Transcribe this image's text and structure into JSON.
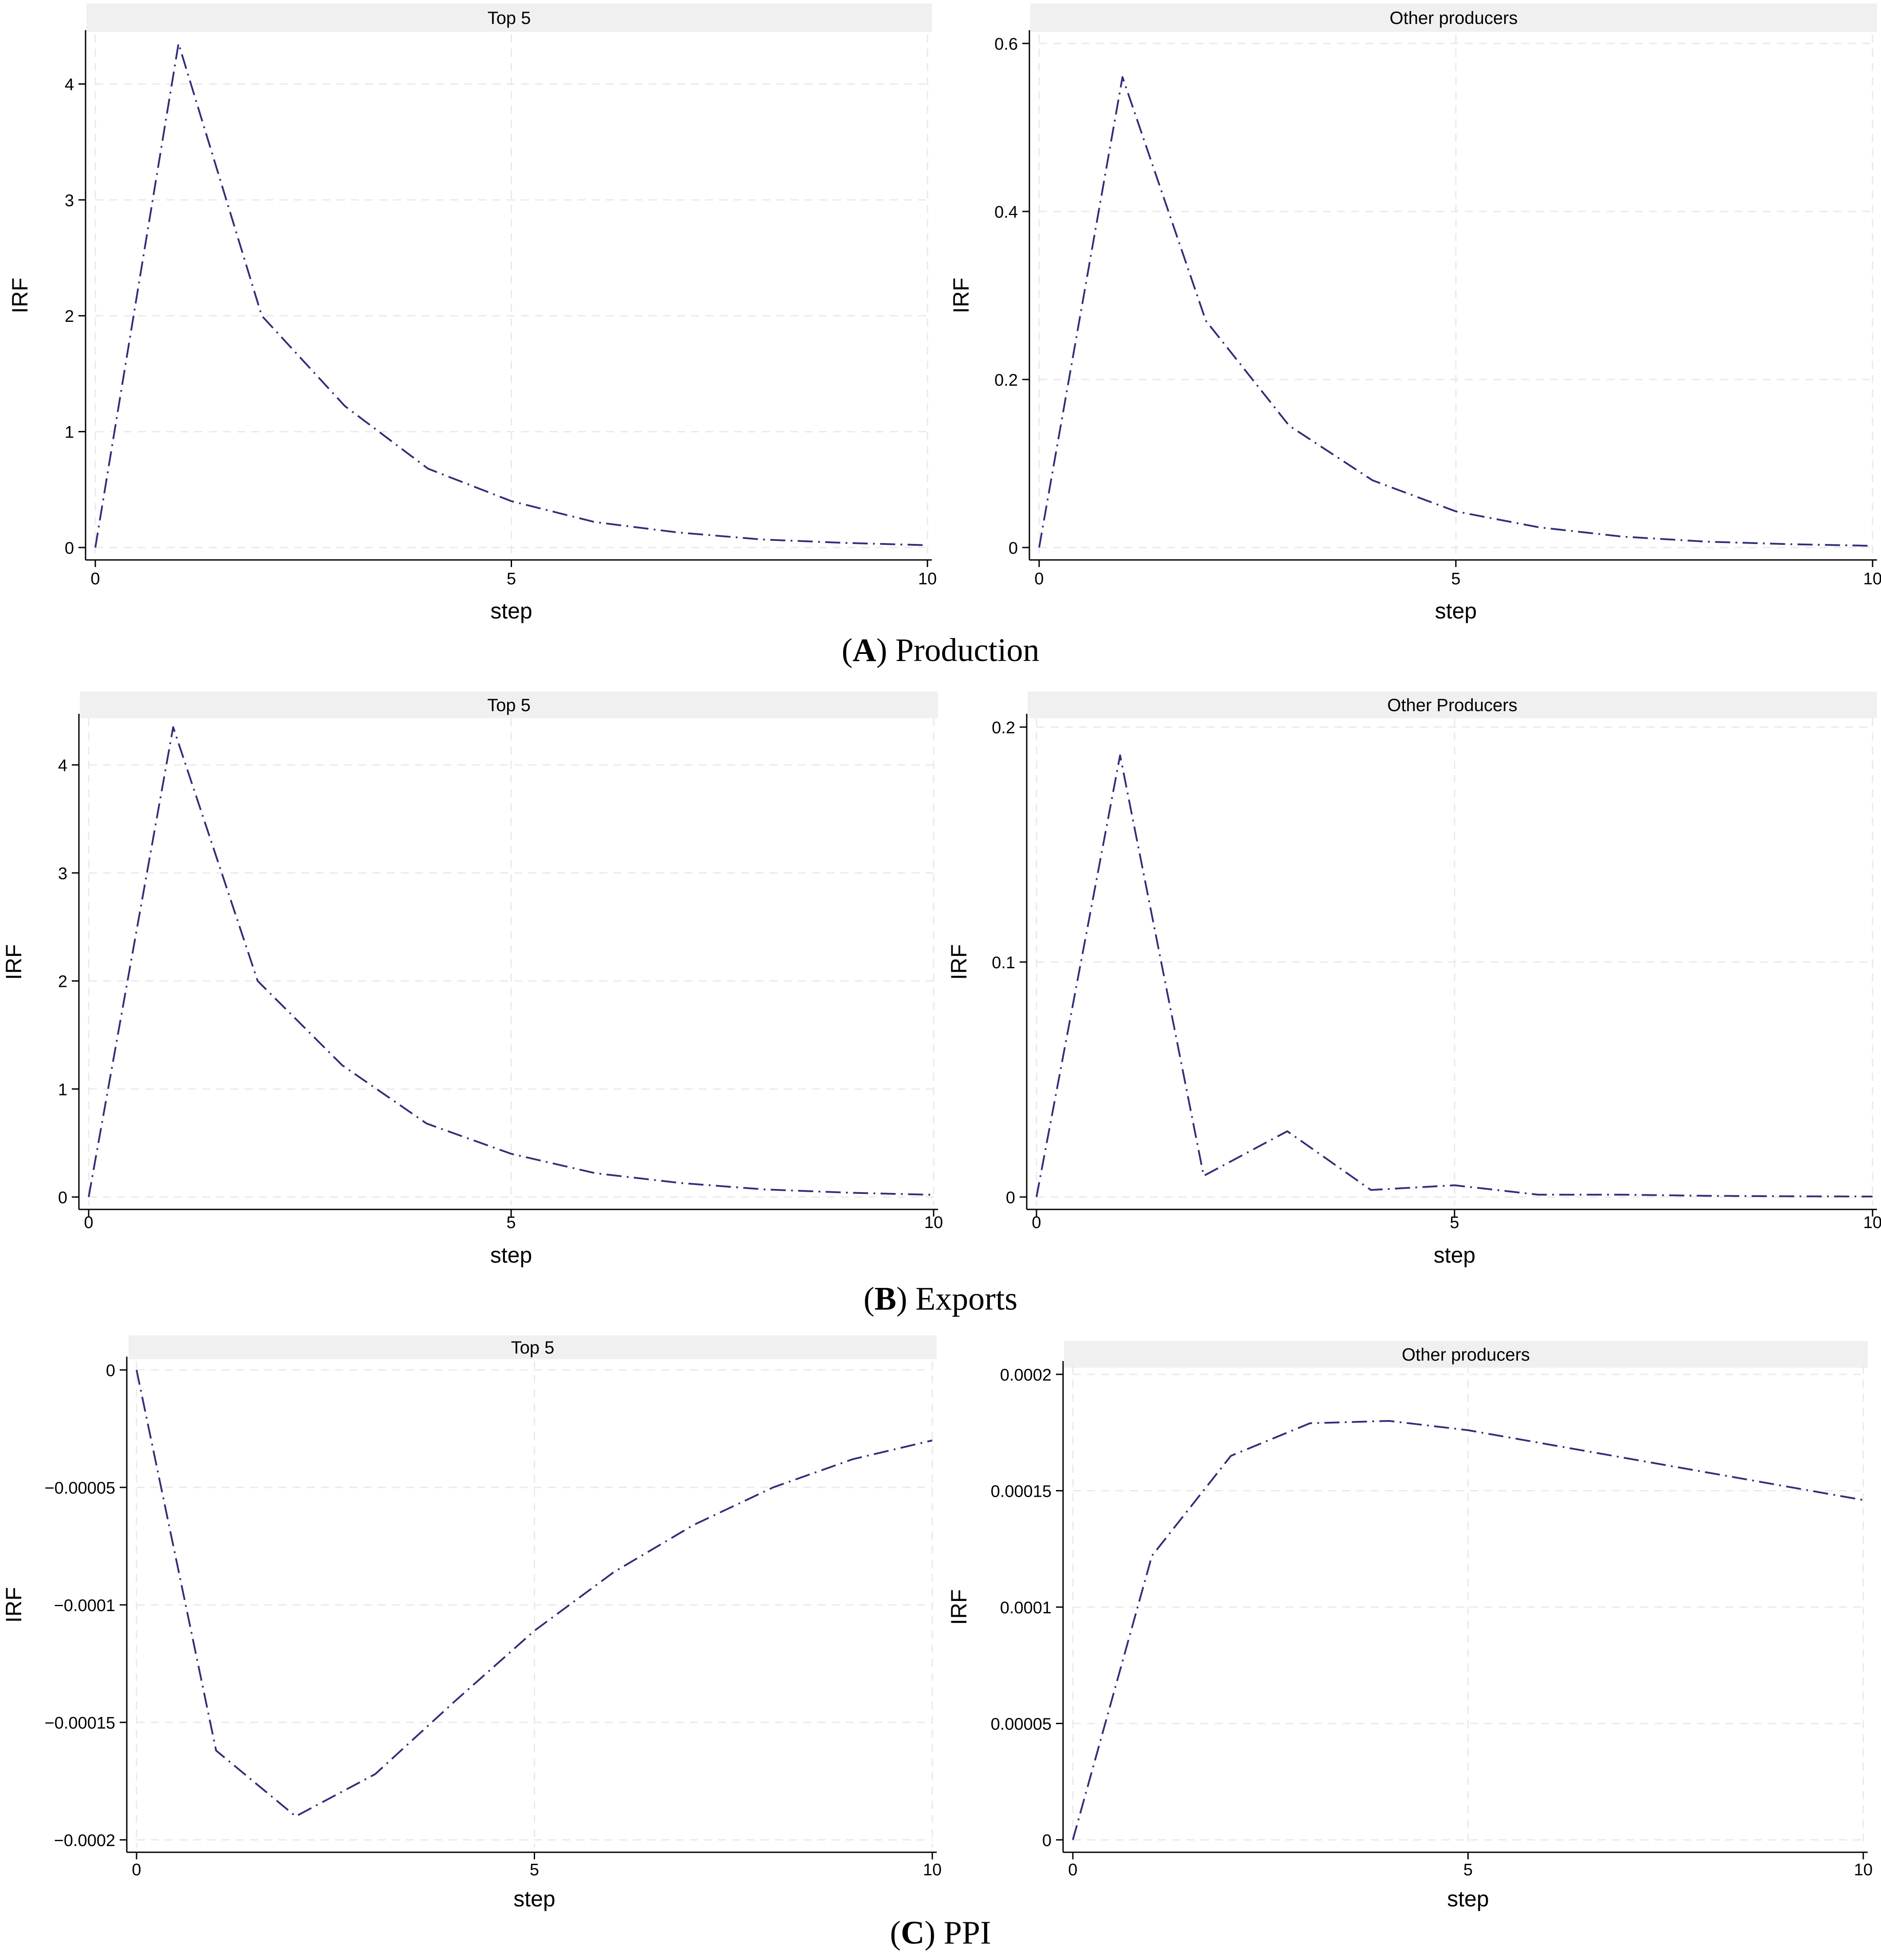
{
  "chart_data": [
    {
      "type": "line",
      "panel": "A",
      "title": "Top 5",
      "xlabel": "step",
      "ylabel": "IRF",
      "xlim": [
        0,
        10
      ],
      "ylim": [
        0,
        4.35
      ],
      "xticks": [
        {
          "v": 0,
          "label": "0"
        },
        {
          "v": 5,
          "label": "5"
        },
        {
          "v": 10,
          "label": "10"
        }
      ],
      "yticks": [
        {
          "v": 0,
          "label": "0"
        },
        {
          "v": 1,
          "label": "1"
        },
        {
          "v": 2,
          "label": "2"
        },
        {
          "v": 3,
          "label": "3"
        },
        {
          "v": 4,
          "label": "4"
        }
      ],
      "x": [
        0,
        1,
        2,
        3,
        4,
        5,
        6,
        7,
        8,
        9,
        10
      ],
      "values": [
        0,
        4.35,
        2.0,
        1.22,
        0.68,
        0.4,
        0.22,
        0.13,
        0.07,
        0.04,
        0.02
      ]
    },
    {
      "type": "line",
      "panel": "A",
      "title": "Other producers",
      "xlabel": "step",
      "ylabel": "IRF",
      "xlim": [
        0,
        10
      ],
      "ylim": [
        0,
        0.6
      ],
      "xticks": [
        {
          "v": 0,
          "label": "0"
        },
        {
          "v": 5,
          "label": "5"
        },
        {
          "v": 10,
          "label": "10"
        }
      ],
      "yticks": [
        {
          "v": 0,
          "label": "0"
        },
        {
          "v": 0.2,
          "label": "0.2"
        },
        {
          "v": 0.4,
          "label": "0.4"
        },
        {
          "v": 0.6,
          "label": "0.6"
        }
      ],
      "x": [
        0,
        1,
        2,
        3,
        4,
        5,
        6,
        7,
        8,
        9,
        10
      ],
      "values": [
        0,
        0.56,
        0.27,
        0.145,
        0.08,
        0.043,
        0.024,
        0.013,
        0.007,
        0.004,
        0.002
      ]
    },
    {
      "type": "line",
      "panel": "B",
      "title": "Top 5",
      "xlabel": "step",
      "ylabel": "IRF",
      "xlim": [
        0,
        10
      ],
      "ylim": [
        0,
        4.35
      ],
      "xticks": [
        {
          "v": 0,
          "label": "0"
        },
        {
          "v": 5,
          "label": "5"
        },
        {
          "v": 10,
          "label": "10"
        }
      ],
      "yticks": [
        {
          "v": 0,
          "label": "0"
        },
        {
          "v": 1,
          "label": "1"
        },
        {
          "v": 2,
          "label": "2"
        },
        {
          "v": 3,
          "label": "3"
        },
        {
          "v": 4,
          "label": "4"
        }
      ],
      "x": [
        0,
        1,
        2,
        3,
        4,
        5,
        6,
        7,
        8,
        9,
        10
      ],
      "values": [
        0,
        4.35,
        2.0,
        1.22,
        0.68,
        0.4,
        0.22,
        0.13,
        0.07,
        0.04,
        0.02
      ]
    },
    {
      "type": "line",
      "panel": "B",
      "title": "Other Producers",
      "xlabel": "step",
      "ylabel": "IRF",
      "xlim": [
        0,
        10
      ],
      "ylim": [
        0,
        0.2
      ],
      "xticks": [
        {
          "v": 0,
          "label": "0"
        },
        {
          "v": 5,
          "label": "5"
        },
        {
          "v": 10,
          "label": "10"
        }
      ],
      "yticks": [
        {
          "v": 0,
          "label": "0"
        },
        {
          "v": 0.1,
          "label": "0.1"
        },
        {
          "v": 0.2,
          "label": "0.2"
        }
      ],
      "x": [
        0,
        1,
        2,
        3,
        4,
        5,
        6,
        7,
        8,
        9,
        10
      ],
      "values": [
        0,
        0.188,
        0.009,
        0.028,
        0.003,
        0.005,
        0.001,
        0.001,
        0.0005,
        0.0003,
        0.0002
      ]
    },
    {
      "type": "line",
      "panel": "C",
      "title": "Top 5",
      "xlabel": "step",
      "ylabel": "IRF",
      "xlim": [
        0,
        10
      ],
      "ylim": [
        -0.0002,
        0
      ],
      "xticks": [
        {
          "v": 0,
          "label": "0"
        },
        {
          "v": 5,
          "label": "5"
        },
        {
          "v": 10,
          "label": "10"
        }
      ],
      "yticks": [
        {
          "v": 0,
          "label": "0"
        },
        {
          "v": -5e-05,
          "label": "−0.00005"
        },
        {
          "v": -0.0001,
          "label": "−0.0001"
        },
        {
          "v": -0.00015,
          "label": "−0.00015"
        },
        {
          "v": -0.0002,
          "label": "−0.0002"
        }
      ],
      "x": [
        0,
        1,
        2,
        3,
        4,
        5,
        6,
        7,
        8,
        9,
        10
      ],
      "values": [
        0,
        -0.000162,
        -0.00019,
        -0.000172,
        -0.000141,
        -0.000111,
        -8.6e-05,
        -6.6e-05,
        -5e-05,
        -3.8e-05,
        -3e-05
      ]
    },
    {
      "type": "line",
      "panel": "C",
      "title": "Other producers",
      "xlabel": "step",
      "ylabel": "IRF",
      "xlim": [
        0,
        10
      ],
      "ylim": [
        0,
        0.0002
      ],
      "xticks": [
        {
          "v": 0,
          "label": "0"
        },
        {
          "v": 5,
          "label": "5"
        },
        {
          "v": 10,
          "label": "10"
        }
      ],
      "yticks": [
        {
          "v": 0,
          "label": "0"
        },
        {
          "v": 5e-05,
          "label": "0.00005"
        },
        {
          "v": 0.0001,
          "label": "0.0001"
        },
        {
          "v": 0.00015,
          "label": "0.00015"
        },
        {
          "v": 0.0002,
          "label": "0.0002"
        }
      ],
      "x": [
        0,
        1,
        2,
        3,
        4,
        5,
        6,
        7,
        8,
        9,
        10
      ],
      "values": [
        0,
        0.000122,
        0.000165,
        0.000179,
        0.00018,
        0.000176,
        0.00017,
        0.000164,
        0.000158,
        0.000152,
        0.000146
      ]
    }
  ],
  "captions": {
    "a": {
      "letter": "A",
      "text": ") Production"
    },
    "b": {
      "letter": "B",
      "text": ") Exports"
    },
    "c": {
      "letter": "C",
      "text": ") PPI"
    }
  },
  "colors": {
    "line": "#2f2f7a",
    "strip": "#f0f0f0",
    "grid": "#eaeaea",
    "axis": "#000000"
  }
}
